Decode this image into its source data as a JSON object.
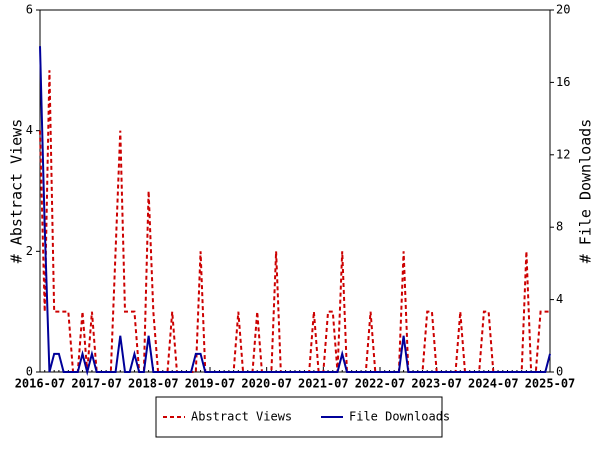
{
  "chart_data": {
    "type": "line",
    "x": [
      "2016-07",
      "2016-08",
      "2016-09",
      "2016-10",
      "2016-11",
      "2016-12",
      "2017-01",
      "2017-02",
      "2017-03",
      "2017-04",
      "2017-05",
      "2017-06",
      "2017-07",
      "2017-08",
      "2017-09",
      "2017-10",
      "2017-11",
      "2017-12",
      "2018-01",
      "2018-02",
      "2018-03",
      "2018-04",
      "2018-05",
      "2018-06",
      "2018-07",
      "2018-08",
      "2018-09",
      "2018-10",
      "2018-11",
      "2018-12",
      "2019-01",
      "2019-02",
      "2019-03",
      "2019-04",
      "2019-05",
      "2019-06",
      "2019-07",
      "2019-08",
      "2019-09",
      "2019-10",
      "2019-11",
      "2019-12",
      "2020-01",
      "2020-02",
      "2020-03",
      "2020-04",
      "2020-05",
      "2020-06",
      "2020-07",
      "2020-08",
      "2020-09",
      "2020-10",
      "2020-11",
      "2020-12",
      "2021-01",
      "2021-02",
      "2021-03",
      "2021-04",
      "2021-05",
      "2021-06",
      "2021-07",
      "2021-08",
      "2021-09",
      "2021-10",
      "2021-11",
      "2021-12",
      "2022-01",
      "2022-02",
      "2022-03",
      "2022-04",
      "2022-05",
      "2022-06",
      "2022-07",
      "2022-08",
      "2022-09",
      "2022-10",
      "2022-11",
      "2022-12",
      "2023-01",
      "2023-02",
      "2023-03",
      "2023-04",
      "2023-05",
      "2023-06",
      "2023-07",
      "2023-08",
      "2023-09",
      "2023-10",
      "2023-11",
      "2023-12",
      "2024-01",
      "2024-02",
      "2024-03",
      "2024-04",
      "2024-05",
      "2024-06",
      "2024-07",
      "2024-08",
      "2024-09",
      "2024-10",
      "2024-11",
      "2024-12",
      "2025-01",
      "2025-02",
      "2025-03",
      "2025-04",
      "2025-05",
      "2025-06",
      "2025-07"
    ],
    "series": [
      {
        "name": "Abstract Views",
        "color": "#cc0000",
        "values": [
          4,
          1,
          5,
          1,
          1,
          1,
          1,
          0,
          0,
          1,
          0,
          1,
          0,
          0,
          0,
          0,
          2,
          4,
          1,
          1,
          1,
          0,
          0,
          3,
          1,
          0,
          0,
          0,
          1,
          0,
          0,
          0,
          0,
          0,
          2,
          0,
          0,
          0,
          0,
          0,
          0,
          0,
          1,
          0,
          0,
          0,
          1,
          0,
          0,
          0,
          2,
          0,
          0,
          0,
          0,
          0,
          0,
          0,
          1,
          0,
          0,
          1,
          1,
          0,
          2,
          0,
          0,
          0,
          0,
          0,
          1,
          0,
          0,
          0,
          0,
          0,
          0,
          2,
          0,
          0,
          0,
          0,
          1,
          1,
          0,
          0,
          0,
          0,
          0,
          1,
          0,
          0,
          0,
          0,
          1,
          1,
          0,
          0,
          0,
          0,
          0,
          0,
          0,
          2,
          0,
          0,
          1,
          1,
          1
        ]
      },
      {
        "name": "File Downloads",
        "color": "#000099",
        "axis": "y2",
        "values": [
          18,
          8,
          0,
          1,
          1,
          0,
          0,
          0,
          0,
          1,
          0,
          1,
          0,
          0,
          0,
          0,
          0,
          2,
          0,
          0,
          1,
          0,
          0,
          2,
          0,
          0,
          0,
          0,
          0,
          0,
          0,
          0,
          0,
          1,
          1,
          0,
          0,
          0,
          0,
          0,
          0,
          0,
          0,
          0,
          0,
          0,
          0,
          0,
          0,
          0,
          0,
          0,
          0,
          0,
          0,
          0,
          0,
          0,
          0,
          0,
          0,
          0,
          0,
          0,
          1,
          0,
          0,
          0,
          0,
          0,
          0,
          0,
          0,
          0,
          0,
          0,
          0,
          2,
          0,
          0,
          0,
          0,
          0,
          0,
          0,
          0,
          0,
          0,
          0,
          0,
          0,
          0,
          0,
          0,
          0,
          0,
          0,
          0,
          0,
          0,
          0,
          0,
          0,
          0,
          0,
          0,
          0,
          0,
          1
        ]
      }
    ],
    "ylabel": "# Abstract Views",
    "y2label": "# File Downloads",
    "ylim": [
      0,
      6
    ],
    "yticks": [
      0,
      2,
      4,
      6
    ],
    "y2lim": [
      0,
      20
    ],
    "y2ticks": [
      0,
      4,
      8,
      12,
      16,
      20
    ],
    "legend": "bottom"
  }
}
